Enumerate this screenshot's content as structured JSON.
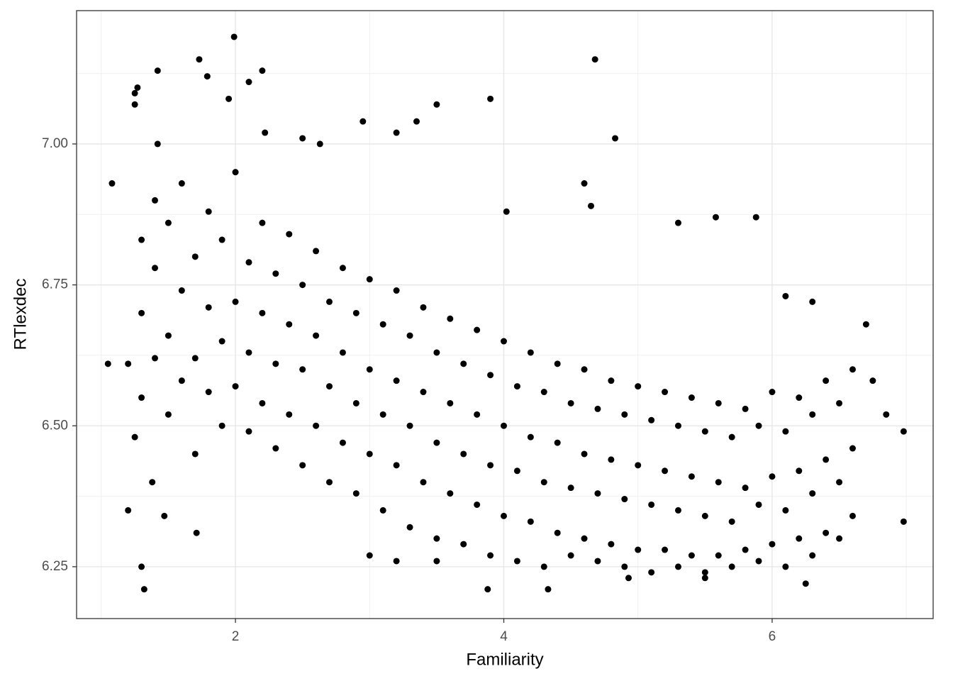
{
  "chart_data": {
    "type": "scatter",
    "x_label": "Familiarity",
    "y_label": "RTlexdec",
    "color": "#000000",
    "grid": true,
    "xlim": [
      0.816,
      7.2
    ],
    "ylim": [
      6.158,
      7.2365
    ],
    "xticks": [
      2,
      4,
      6
    ],
    "yticks": [
      {
        "value": 6.25,
        "label": "6.25"
      },
      {
        "value": 6.5,
        "label": "6.50"
      },
      6.75,
      {
        "value": 7,
        "label": "7.00"
      }
    ],
    "x": [
      1.99,
      1.73,
      1.42,
      1.79,
      2.2,
      2.1,
      1.95,
      1.27,
      1.25,
      1.25,
      4.68,
      3.9,
      3.5,
      3.2,
      3.35,
      2.95,
      4.83,
      2.22,
      1.42,
      2.63,
      2.5,
      1.08,
      1.05,
      1.2,
      1.2,
      1.3,
      1.32,
      1.25,
      1.47,
      1.38,
      1.71,
      3.88,
      4.33,
      6.25,
      5.5,
      4.93,
      6.98,
      6.98,
      6.85,
      6.75,
      6.7,
      5.88,
      5.58,
      5.3,
      4.6,
      4.65,
      4.02,
      3.0,
      3.2,
      3.5,
      6.3,
      6.1,
      1.3,
      1.3,
      1.3,
      1.4,
      1.4,
      1.4,
      1.5,
      1.5,
      1.5,
      1.6,
      1.6,
      1.6,
      1.7,
      1.7,
      1.7,
      1.8,
      1.8,
      1.8,
      1.9,
      1.9,
      1.9,
      2.0,
      2.0,
      2.0,
      2.1,
      2.1,
      2.1,
      2.2,
      2.2,
      2.2,
      2.3,
      2.3,
      2.3,
      2.4,
      2.4,
      2.4,
      2.5,
      2.5,
      2.5,
      2.6,
      2.6,
      2.6,
      2.7,
      2.7,
      2.7,
      2.8,
      2.8,
      2.8,
      2.9,
      2.9,
      2.9,
      3.0,
      3.0,
      3.0,
      3.1,
      3.1,
      3.1,
      3.2,
      3.2,
      3.2,
      3.3,
      3.3,
      3.3,
      3.4,
      3.4,
      3.4,
      3.5,
      3.5,
      3.5,
      3.6,
      3.6,
      3.6,
      3.7,
      3.7,
      3.7,
      3.8,
      3.8,
      3.8,
      3.9,
      3.9,
      3.9,
      4.0,
      4.0,
      4.0,
      4.1,
      4.1,
      4.1,
      4.2,
      4.2,
      4.2,
      4.3,
      4.3,
      4.3,
      4.4,
      4.4,
      4.4,
      4.5,
      4.5,
      4.5,
      4.6,
      4.6,
      4.6,
      4.7,
      4.7,
      4.7,
      4.8,
      4.8,
      4.8,
      4.9,
      4.9,
      4.9,
      5.0,
      5.0,
      5.0,
      5.1,
      5.1,
      5.1,
      5.2,
      5.2,
      5.2,
      5.3,
      5.3,
      5.3,
      5.4,
      5.4,
      5.4,
      5.5,
      5.5,
      5.5,
      5.6,
      5.6,
      5.6,
      5.7,
      5.7,
      5.7,
      5.8,
      5.8,
      5.8,
      5.9,
      5.9,
      5.9,
      6.0,
      6.0,
      6.0,
      6.1,
      6.1,
      6.1,
      6.2,
      6.2,
      6.2,
      6.3,
      6.3,
      6.3,
      6.4,
      6.4,
      6.4,
      6.5,
      6.5,
      6.5,
      6.6,
      6.6,
      6.6
    ],
    "y": [
      7.19,
      7.15,
      7.13,
      7.12,
      7.13,
      7.11,
      7.08,
      7.1,
      7.09,
      7.07,
      7.15,
      7.08,
      7.07,
      7.02,
      7.04,
      7.04,
      7.01,
      7.02,
      7.0,
      7.0,
      7.01,
      6.93,
      6.61,
      6.61,
      6.35,
      6.25,
      6.21,
      6.48,
      6.34,
      6.4,
      6.31,
      6.21,
      6.21,
      6.22,
      6.23,
      6.23,
      6.49,
      6.33,
      6.52,
      6.58,
      6.68,
      6.87,
      6.87,
      6.86,
      6.93,
      6.89,
      6.88,
      6.27,
      6.26,
      6.26,
      6.72,
      6.73,
      6.55,
      6.7,
      6.83,
      6.62,
      6.78,
      6.9,
      6.52,
      6.66,
      6.86,
      6.58,
      6.74,
      6.93,
      6.45,
      6.62,
      6.8,
      6.56,
      6.71,
      6.88,
      6.5,
      6.65,
      6.83,
      6.57,
      6.72,
      6.95,
      6.49,
      6.63,
      6.79,
      6.54,
      6.7,
      6.86,
      6.46,
      6.61,
      6.77,
      6.52,
      6.68,
      6.84,
      6.43,
      6.6,
      6.75,
      6.5,
      6.66,
      6.81,
      6.4,
      6.57,
      6.72,
      6.47,
      6.63,
      6.78,
      6.38,
      6.54,
      6.7,
      6.45,
      6.6,
      6.76,
      6.35,
      6.52,
      6.68,
      6.43,
      6.58,
      6.74,
      6.32,
      6.5,
      6.66,
      6.4,
      6.56,
      6.71,
      6.3,
      6.47,
      6.63,
      6.38,
      6.54,
      6.69,
      6.29,
      6.45,
      6.61,
      6.36,
      6.52,
      6.67,
      6.27,
      6.43,
      6.59,
      6.34,
      6.5,
      6.65,
      6.26,
      6.42,
      6.57,
      6.33,
      6.48,
      6.63,
      6.25,
      6.4,
      6.56,
      6.31,
      6.47,
      6.61,
      6.27,
      6.39,
      6.54,
      6.3,
      6.45,
      6.6,
      6.26,
      6.38,
      6.53,
      6.29,
      6.44,
      6.58,
      6.25,
      6.37,
      6.52,
      6.28,
      6.43,
      6.57,
      6.24,
      6.36,
      6.51,
      6.28,
      6.42,
      6.56,
      6.25,
      6.35,
      6.5,
      6.27,
      6.41,
      6.55,
      6.24,
      6.34,
      6.49,
      6.27,
      6.4,
      6.54,
      6.25,
      6.33,
      6.48,
      6.28,
      6.39,
      6.53,
      6.26,
      6.36,
      6.5,
      6.29,
      6.41,
      6.56,
      6.25,
      6.35,
      6.49,
      6.3,
      6.42,
      6.55,
      6.27,
      6.38,
      6.52,
      6.31,
      6.44,
      6.58,
      6.3,
      6.4,
      6.54,
      6.34,
      6.46,
      6.6
    ]
  }
}
